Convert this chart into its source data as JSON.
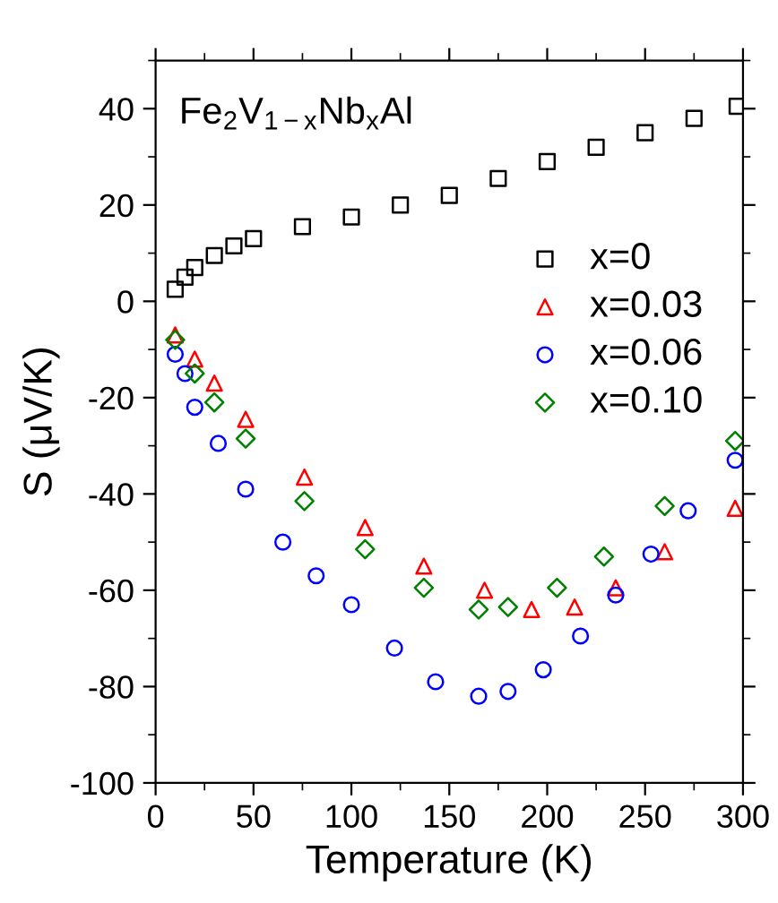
{
  "chart_data": {
    "type": "scatter",
    "xlabel": "Temperature (K)",
    "ylabel": "S (μV/K)",
    "annotations": [
      "Fe$_{2}$V$_{1−x}$Nb$_{x}$Al"
    ],
    "xlim": [
      0,
      300
    ],
    "xticks": [
      0,
      50,
      100,
      150,
      200,
      250,
      300
    ],
    "ylim": [
      -100,
      50
    ],
    "yticks": [
      -100,
      -80,
      -60,
      -40,
      -20,
      0,
      20,
      40
    ],
    "grid": false,
    "legend": "top right",
    "series": [
      {
        "name": "x=0",
        "color": "#000000",
        "marker": "square",
        "x": [
          10,
          15,
          20,
          30,
          40,
          50,
          75,
          100,
          125,
          150,
          175,
          200,
          225,
          250,
          275,
          297
        ],
        "values": [
          2.5,
          5,
          7,
          9.5,
          11.5,
          13,
          15.5,
          17.5,
          20,
          22,
          25.5,
          29,
          32,
          35,
          38,
          40.5
        ]
      },
      {
        "name": "x=0.03",
        "color": "#ff0000",
        "marker": "triangle",
        "x": [
          10,
          20,
          30,
          46,
          76,
          107,
          137,
          168,
          192,
          214,
          235,
          260,
          296
        ],
        "values": [
          -7,
          -12,
          -17,
          -24.5,
          -36.5,
          -47,
          -55,
          -60,
          -64,
          -63.5,
          -59.5,
          -52,
          -43
        ]
      },
      {
        "name": "x=0.06",
        "color": "#0000ff",
        "marker": "circle",
        "x": [
          10,
          15,
          20,
          32,
          46,
          65,
          82,
          100,
          122,
          143,
          165,
          180,
          198,
          217,
          235,
          253,
          272,
          296
        ],
        "values": [
          -11,
          -15,
          -22,
          -29.5,
          -39,
          -50,
          -57,
          -63,
          -72,
          -79,
          -82,
          -81,
          -76.5,
          -69.5,
          -61,
          -52.5,
          -43.5,
          -33
        ]
      },
      {
        "name": "x=0.10",
        "color": "#008000",
        "marker": "diamond",
        "x": [
          10,
          20,
          30,
          46,
          76,
          107,
          137,
          165,
          180,
          205,
          229,
          260,
          296
        ],
        "values": [
          -8,
          -15,
          -21,
          -28.5,
          -41.5,
          -51.5,
          -59.5,
          -64,
          -63.5,
          -59.5,
          -53,
          -42.5,
          -29
        ]
      }
    ]
  }
}
